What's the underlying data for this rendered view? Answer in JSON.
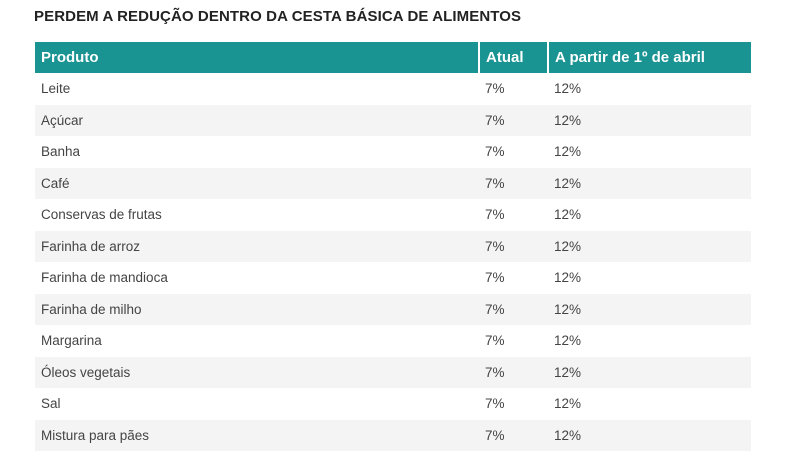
{
  "title": "PERDEM A REDUÇÃO DENTRO DA CESTA BÁSICA DE ALIMENTOS",
  "table": {
    "headers": [
      "Produto",
      "Atual",
      "A partir de 1º de abril"
    ],
    "rows": [
      [
        "Leite",
        "7%",
        "12%"
      ],
      [
        "Açúcar",
        "7%",
        "12%"
      ],
      [
        "Banha",
        "7%",
        "12%"
      ],
      [
        "Café",
        "7%",
        "12%"
      ],
      [
        "Conservas de frutas",
        "7%",
        "12%"
      ],
      [
        "Farinha de arroz",
        "7%",
        "12%"
      ],
      [
        "Farinha de mandioca",
        "7%",
        "12%"
      ],
      [
        "Farinha de milho",
        "7%",
        "12%"
      ],
      [
        "Margarina",
        "7%",
        "12%"
      ],
      [
        "Óleos vegetais",
        "7%",
        "12%"
      ],
      [
        "Sal",
        "7%",
        "12%"
      ],
      [
        "Mistura para pães",
        "7%",
        "12%"
      ]
    ]
  },
  "colors": {
    "header_bg": "#1a9393",
    "header_text": "#ffffff",
    "stripe": "#f4f4f4",
    "body_text": "#444444"
  }
}
